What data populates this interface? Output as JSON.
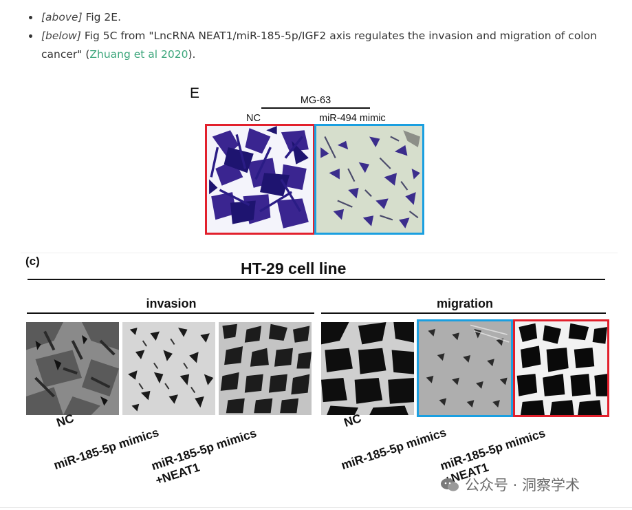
{
  "bullets": [
    {
      "tag": "[above]",
      "text": " Fig 2E."
    },
    {
      "tag": "[below]",
      "text_before": " Fig 5C from \"LncRNA NEAT1/miR-185-5p/IGF2 axis regulates the invasion and migration of colon cancer\" (",
      "link": "Zhuang et al 2020",
      "text_after": ")."
    }
  ],
  "figure_e": {
    "panel_letter": "E",
    "cell_line": "MG-63",
    "label_left": "NC",
    "label_right": "miR-494 mimic",
    "frame_colors": {
      "left": "#e2202c",
      "right": "#1a9fe0"
    }
  },
  "figure_c": {
    "panel_letter": "(c)",
    "title": "HT-29 cell line",
    "invasion": {
      "title": "invasion",
      "labels": [
        "NC",
        "miR-185-5p mimics",
        "miR-185-5p mimics",
        "+NEAT1"
      ]
    },
    "migration": {
      "title": "migration",
      "labels": [
        "NC",
        "miR-185-5p mimics",
        "miR-185-5p mimics",
        "+NEAT1"
      ]
    }
  },
  "watermark": "公众号 · 洞察学术"
}
